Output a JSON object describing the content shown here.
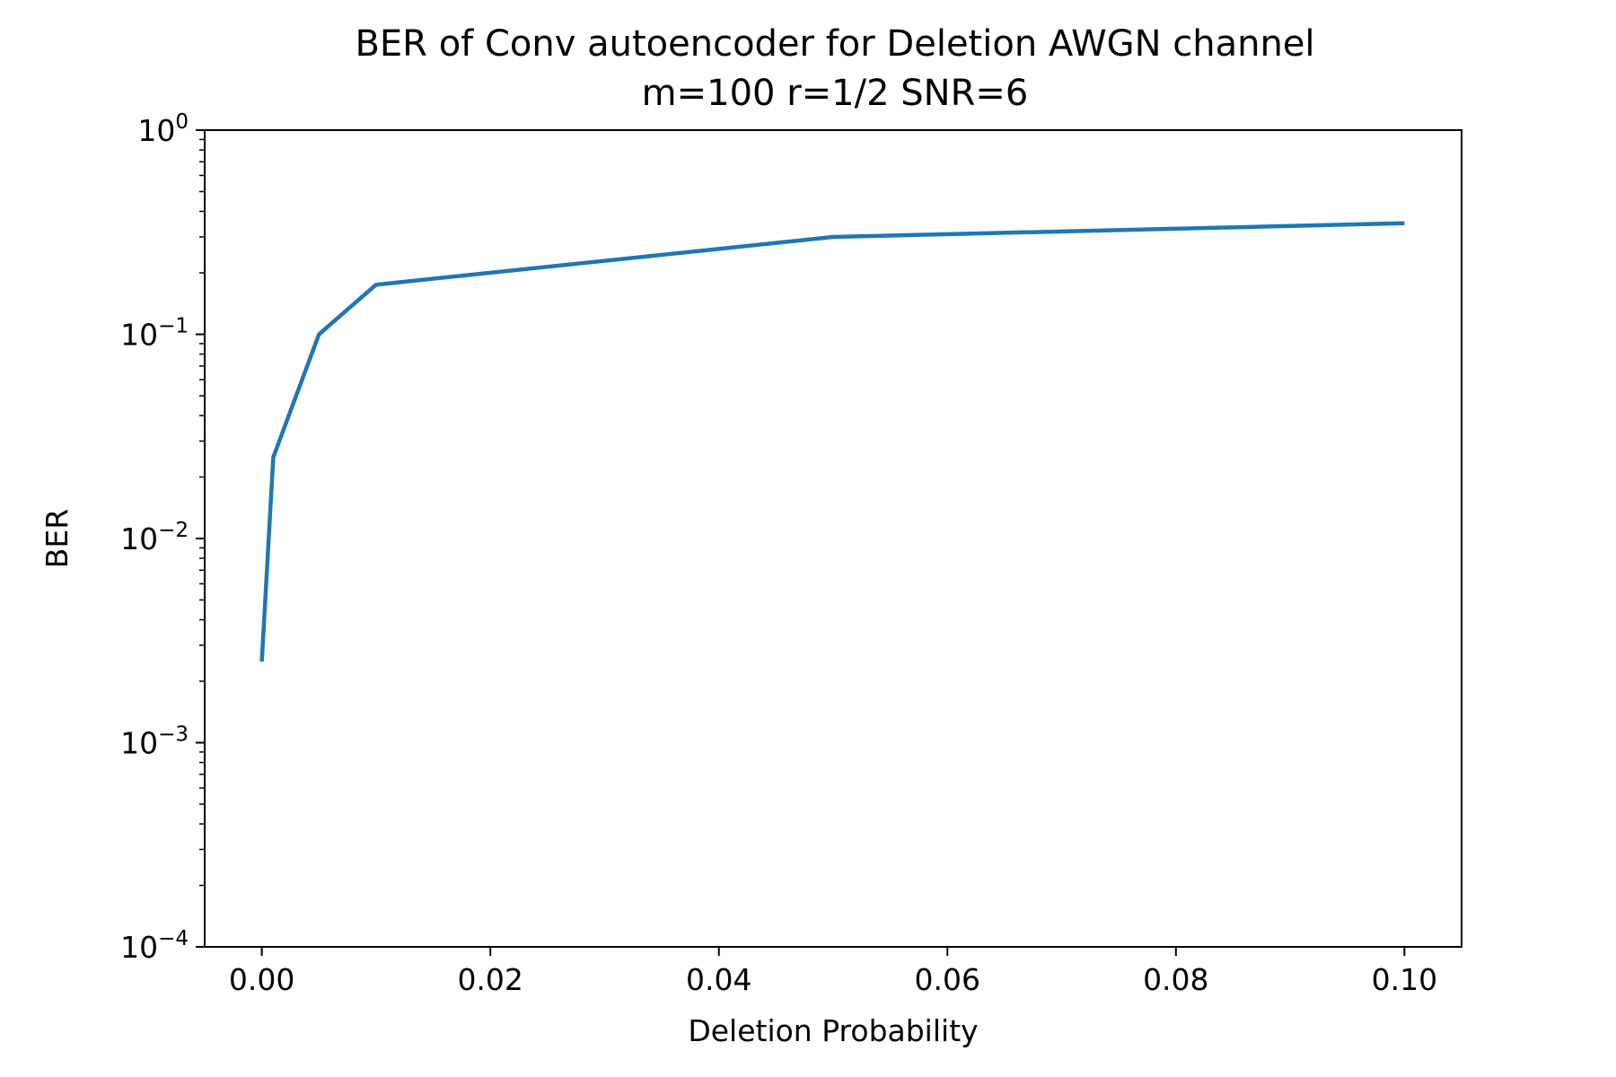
{
  "chart_data": {
    "type": "line",
    "title": "BER of Conv autoencoder for Deletion AWGN channel",
    "subtitle": "m=100 r=1/2 SNR=6",
    "xlabel": "Deletion Probability",
    "ylabel": "BER",
    "xlim": [
      -0.005,
      0.105
    ],
    "ylim": [
      0.0001,
      1
    ],
    "yscale": "log",
    "grid": false,
    "x_ticks": [
      {
        "value": 0.0,
        "label": "0.00"
      },
      {
        "value": 0.02,
        "label": "0.02"
      },
      {
        "value": 0.04,
        "label": "0.04"
      },
      {
        "value": 0.06,
        "label": "0.06"
      },
      {
        "value": 0.08,
        "label": "0.08"
      },
      {
        "value": 0.1,
        "label": "0.10"
      }
    ],
    "y_ticks": [
      {
        "value": 0.0001,
        "base": "10",
        "exp": "−4"
      },
      {
        "value": 0.001,
        "base": "10",
        "exp": "−3"
      },
      {
        "value": 0.01,
        "base": "10",
        "exp": "−2"
      },
      {
        "value": 0.1,
        "base": "10",
        "exp": "−1"
      },
      {
        "value": 1,
        "base": "10",
        "exp": "0"
      }
    ],
    "series": [
      {
        "color": "#1f77b4",
        "x": [
          0.0,
          0.001,
          0.005,
          0.01,
          0.05,
          0.1
        ],
        "y": [
          0.0025,
          0.025,
          0.1,
          0.175,
          0.3,
          0.35
        ]
      }
    ]
  }
}
